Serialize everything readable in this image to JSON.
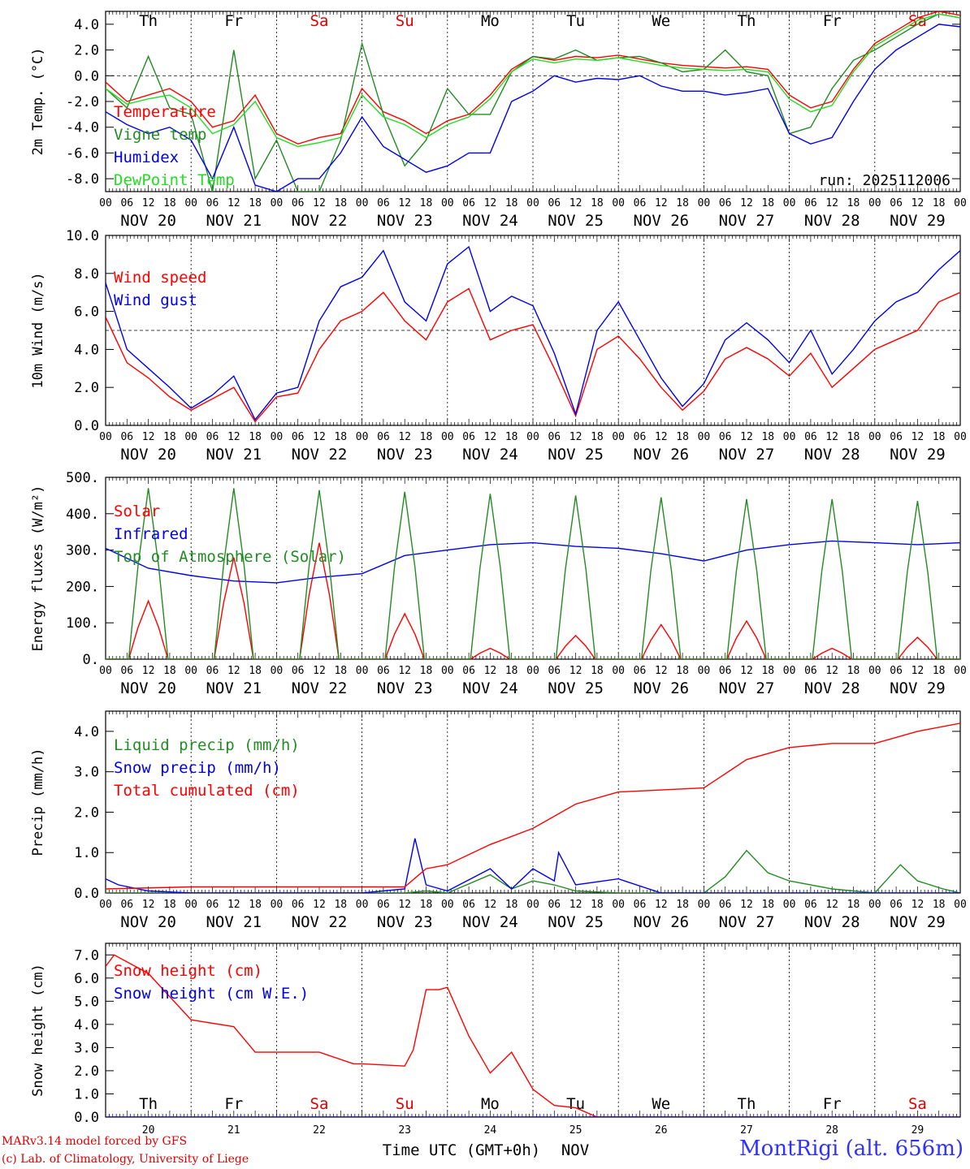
{
  "footer": {
    "model": "MARv3.14 model forced by GFS",
    "lab": "(c) Lab. of Climatology, University of Liege",
    "site": "MontRigi (alt. 656m)",
    "xlabel": "Time UTC (GMT+0h)",
    "xunit": "NOV"
  },
  "colors": {
    "red": "#ff0000",
    "green": "#228b22",
    "blue": "#0000ee",
    "lightgreen": "#22dd22",
    "weekend": "#e00000",
    "weekday": "#000000"
  },
  "days": [
    {
      "abbr": "Th",
      "date": "NOV 20",
      "num": "20",
      "weekend": false
    },
    {
      "abbr": "Fr",
      "date": "NOV 21",
      "num": "21",
      "weekend": false
    },
    {
      "abbr": "Sa",
      "date": "NOV 22",
      "num": "22",
      "weekend": true
    },
    {
      "abbr": "Su",
      "date": "NOV 23",
      "num": "23",
      "weekend": true
    },
    {
      "abbr": "Mo",
      "date": "NOV 24",
      "num": "24",
      "weekend": false
    },
    {
      "abbr": "Tu",
      "date": "NOV 25",
      "num": "25",
      "weekend": false
    },
    {
      "abbr": "We",
      "date": "NOV 26",
      "num": "26",
      "weekend": false
    },
    {
      "abbr": "Th",
      "date": "NOV 27",
      "num": "27",
      "weekend": false
    },
    {
      "abbr": "Fr",
      "date": "NOV 28",
      "num": "28",
      "weekend": false
    },
    {
      "abbr": "Sa",
      "date": "NOV 29",
      "num": "29",
      "weekend": true
    }
  ],
  "hour_ticks": [
    "00",
    "06",
    "12",
    "18"
  ],
  "chart_data": [
    {
      "type": "line",
      "title": "",
      "ylabel": "2m Temp. (°C)",
      "ylim": [
        -9,
        5
      ],
      "yticks": [
        -8,
        -6,
        -4,
        -2,
        0,
        2,
        4
      ],
      "ytick_labels": [
        "-8.0",
        "-6.0",
        "-4.0",
        "-2.0",
        "0.0",
        "2.0",
        "4.0"
      ],
      "ref_line": 0,
      "annotation": "run: 2025112006",
      "x_unit": "days since NOV 20 00 UTC",
      "series": [
        {
          "name": "Temperature",
          "color": "red",
          "x": [
            0,
            0.25,
            0.5,
            0.75,
            1,
            1.25,
            1.5,
            1.75,
            2,
            2.25,
            2.5,
            2.75,
            3,
            3.25,
            3.5,
            3.75,
            4,
            4.25,
            4.5,
            4.75,
            5,
            5.25,
            5.5,
            5.75,
            6,
            6.25,
            6.5,
            6.75,
            7,
            7.25,
            7.5,
            7.75,
            8,
            8.25,
            8.5,
            8.75,
            9,
            9.25,
            9.5,
            9.75,
            10
          ],
          "values": [
            -0.5,
            -2,
            -1.5,
            -1,
            -2,
            -4,
            -3.5,
            -1.5,
            -4.5,
            -5.3,
            -4.8,
            -4.5,
            -1,
            -2.8,
            -3.5,
            -4.5,
            -3.5,
            -3,
            -1.5,
            0.5,
            1.5,
            1.2,
            1.5,
            1.4,
            1.6,
            1.3,
            1,
            0.8,
            0.7,
            0.6,
            0.7,
            0.5,
            -1.5,
            -2.5,
            -2,
            0.5,
            2.5,
            3.5,
            4.5,
            5,
            4.7
          ]
        },
        {
          "name": "Vigne temp",
          "color": "green",
          "x": [
            0,
            0.25,
            0.5,
            0.75,
            1,
            1.25,
            1.5,
            1.75,
            2,
            2.25,
            2.5,
            2.75,
            3,
            3.25,
            3.5,
            3.75,
            4,
            4.25,
            4.5,
            4.75,
            5,
            5.25,
            5.5,
            5.75,
            6,
            6.25,
            6.5,
            6.75,
            7,
            7.25,
            7.5,
            7.75,
            8,
            8.25,
            8.5,
            8.75,
            9,
            9.25,
            9.5,
            9.75,
            10
          ],
          "values": [
            -1,
            -2.5,
            1.5,
            -2.5,
            -3,
            -9,
            2,
            -8,
            -5,
            -9,
            -9,
            -5,
            2.5,
            -3,
            -7,
            -5,
            -1,
            -3,
            -3,
            0.3,
            1.5,
            1.3,
            2,
            1.2,
            1.4,
            1.5,
            1,
            0.3,
            0.5,
            2,
            0.3,
            0,
            -4.5,
            -4,
            -1,
            1.2,
            2,
            3,
            4,
            4.8,
            4.5
          ]
        },
        {
          "name": "Humidex",
          "color": "blue",
          "x": [
            0,
            0.25,
            0.5,
            0.75,
            1,
            1.25,
            1.5,
            1.75,
            2,
            2.25,
            2.5,
            2.75,
            3,
            3.25,
            3.5,
            3.75,
            4,
            4.25,
            4.5,
            4.75,
            5,
            5.25,
            5.5,
            5.75,
            6,
            6.25,
            6.5,
            6.75,
            7,
            7.25,
            7.5,
            7.75,
            8,
            8.25,
            8.5,
            8.75,
            9,
            9.25,
            9.5,
            9.75,
            10
          ],
          "values": [
            -2.8,
            -3.8,
            -4.5,
            -4,
            -5,
            -8,
            -4,
            -8.5,
            -9,
            -8,
            -8,
            -6,
            -3.2,
            -5.5,
            -6.5,
            -7.5,
            -7,
            -6,
            -6,
            -2,
            -1.2,
            0,
            -0.5,
            -0.2,
            -0.3,
            0,
            -0.8,
            -1.2,
            -1.2,
            -1.5,
            -1.3,
            -1,
            -4.5,
            -5.3,
            -4.8,
            -2,
            0.5,
            2,
            3,
            4,
            3.8
          ]
        },
        {
          "name": "DewPoint Temp",
          "color": "lightgreen",
          "x": [
            0,
            0.25,
            0.5,
            0.75,
            1,
            1.25,
            1.5,
            1.75,
            2,
            2.25,
            2.5,
            2.75,
            3,
            3.25,
            3.5,
            3.75,
            4,
            4.25,
            4.5,
            4.75,
            5,
            5.25,
            5.5,
            5.75,
            6,
            6.25,
            6.5,
            6.75,
            7,
            7.25,
            7.5,
            7.75,
            8,
            8.25,
            8.5,
            8.75,
            9,
            9.25,
            9.5,
            9.75,
            10
          ],
          "values": [
            -1,
            -2.2,
            -1.8,
            -1.5,
            -2.5,
            -4.5,
            -3.8,
            -2,
            -4.8,
            -5.5,
            -5.2,
            -4.8,
            -1.5,
            -3.2,
            -3.8,
            -4.8,
            -3.8,
            -3.2,
            -1.8,
            0.3,
            1.3,
            1,
            1.3,
            1.2,
            1.4,
            1.1,
            0.8,
            0.6,
            0.5,
            0.4,
            0.5,
            0.3,
            -1.8,
            -2.8,
            -2.3,
            0.3,
            2.3,
            3.3,
            4.3,
            4.8,
            4.5
          ]
        }
      ]
    },
    {
      "type": "line",
      "ylabel": "10m Wind (m/s)",
      "ylim": [
        0,
        10
      ],
      "yticks": [
        0,
        2,
        4,
        6,
        8,
        10
      ],
      "ytick_labels": [
        "0.0",
        "2.0",
        "4.0",
        "6.0",
        "8.0",
        "10.0"
      ],
      "ref_line": 5,
      "x_unit": "days since NOV 20 00 UTC",
      "series": [
        {
          "name": "Wind speed",
          "color": "red",
          "x": [
            0,
            0.25,
            0.5,
            0.75,
            1,
            1.25,
            1.5,
            1.75,
            2,
            2.25,
            2.5,
            2.75,
            3,
            3.25,
            3.5,
            3.75,
            4,
            4.25,
            4.5,
            4.75,
            5,
            5.25,
            5.5,
            5.75,
            6,
            6.25,
            6.5,
            6.75,
            7,
            7.25,
            7.5,
            7.75,
            8,
            8.25,
            8.5,
            8.75,
            9,
            9.25,
            9.5,
            9.75,
            10
          ],
          "values": [
            5.7,
            3.3,
            2.5,
            1.5,
            0.8,
            1.4,
            2,
            0.2,
            1.5,
            1.7,
            4,
            5.5,
            6,
            7,
            5.5,
            4.5,
            6.5,
            7.2,
            4.5,
            5,
            5.3,
            3,
            0.5,
            4,
            4.7,
            3.5,
            2,
            0.8,
            1.8,
            3.5,
            4.1,
            3.5,
            2.6,
            3.8,
            2,
            3,
            4,
            4.5,
            5,
            6.5,
            7
          ]
        },
        {
          "name": "Wind gust",
          "color": "blue",
          "x": [
            0,
            0.25,
            0.5,
            0.75,
            1,
            1.25,
            1.5,
            1.75,
            2,
            2.25,
            2.5,
            2.75,
            3,
            3.25,
            3.5,
            3.75,
            4,
            4.25,
            4.5,
            4.75,
            5,
            5.25,
            5.5,
            5.75,
            6,
            6.25,
            6.5,
            6.75,
            7,
            7.25,
            7.5,
            7.75,
            8,
            8.25,
            8.5,
            8.75,
            9,
            9.25,
            9.5,
            9.75,
            10
          ],
          "values": [
            7.5,
            4,
            3,
            2,
            0.9,
            1.6,
            2.6,
            0.3,
            1.7,
            2,
            5.5,
            7.3,
            7.8,
            9.2,
            6.5,
            5.5,
            8.5,
            9.4,
            6,
            6.8,
            6.3,
            3.8,
            0.6,
            5,
            6.5,
            4.5,
            2.5,
            1,
            2.2,
            4.5,
            5.4,
            4.5,
            3.3,
            5,
            2.7,
            4,
            5.5,
            6.5,
            7,
            8.2,
            9.2
          ]
        }
      ]
    },
    {
      "type": "line",
      "ylabel": "Energy fluxes (W/m²)",
      "ylim": [
        0,
        500
      ],
      "yticks": [
        0,
        100,
        200,
        300,
        400,
        500
      ],
      "ytick_labels": [
        "0.",
        "100.",
        "200.",
        "300.",
        "400.",
        "500."
      ],
      "x_unit": "days since NOV 20 00 UTC",
      "series": [
        {
          "name": "Solar",
          "color": "red",
          "peaks": [
            160,
            280,
            320,
            125,
            30,
            65,
            95,
            105,
            30,
            60
          ]
        },
        {
          "name": "Infrared",
          "color": "blue",
          "x": [
            0,
            0.5,
            1,
            1.5,
            2,
            2.5,
            3,
            3.5,
            4,
            4.5,
            5,
            5.5,
            6,
            6.5,
            7,
            7.5,
            8,
            8.5,
            9,
            9.5,
            10
          ],
          "values": [
            305,
            250,
            230,
            215,
            210,
            225,
            235,
            285,
            300,
            315,
            320,
            310,
            305,
            290,
            270,
            300,
            315,
            325,
            320,
            315,
            320
          ]
        },
        {
          "name": "Top of Atmosphere (Solar)",
          "color": "green",
          "peaks": [
            470,
            470,
            465,
            460,
            455,
            450,
            445,
            440,
            440,
            435
          ]
        }
      ]
    },
    {
      "type": "line",
      "ylabel": "Precip (mm/h)",
      "ylim": [
        0,
        4.5
      ],
      "yticks": [
        0,
        1,
        2,
        3,
        4
      ],
      "ytick_labels": [
        "0.0",
        "1.0",
        "2.0",
        "3.0",
        "4.0"
      ],
      "x_unit": "days since NOV 20 00 UTC",
      "series": [
        {
          "name": "Liquid precip (mm/h)",
          "color": "green",
          "x": [
            0,
            0.5,
            1,
            2,
            3,
            3.5,
            3.75,
            4,
            4.5,
            4.75,
            5,
            5.25,
            5.5,
            6,
            7,
            7.25,
            7.5,
            7.75,
            8,
            8.5,
            9,
            9.3,
            9.5,
            9.8,
            10
          ],
          "values": [
            0,
            0,
            0,
            0,
            0,
            0,
            0.05,
            0,
            0.45,
            0.1,
            0.3,
            0.2,
            0.05,
            0,
            0,
            0.4,
            1.05,
            0.5,
            0.3,
            0.1,
            0,
            0.7,
            0.3,
            0.1,
            0
          ]
        },
        {
          "name": "Snow precip (mm/h)",
          "color": "blue",
          "x": [
            0,
            0.15,
            0.5,
            1,
            2,
            3,
            3.5,
            3.62,
            3.75,
            4,
            4.5,
            4.75,
            5,
            5.25,
            5.3,
            5.5,
            6,
            6.5,
            7,
            8,
            9,
            10
          ],
          "values": [
            0.35,
            0.2,
            0.05,
            0,
            0,
            0,
            0.1,
            1.35,
            0.2,
            0.05,
            0.6,
            0.1,
            0.6,
            0.3,
            1.0,
            0.2,
            0.35,
            0,
            0,
            0,
            0,
            0
          ]
        },
        {
          "name": "Total cumulated (cm)",
          "color": "red",
          "x": [
            0,
            1,
            2,
            3,
            3.5,
            3.75,
            4,
            4.5,
            5,
            5.5,
            6,
            7,
            7.5,
            8,
            8.5,
            9,
            9.5,
            10
          ],
          "values": [
            0.1,
            0.15,
            0.15,
            0.15,
            0.15,
            0.6,
            0.7,
            1.2,
            1.6,
            2.2,
            2.5,
            2.6,
            3.3,
            3.6,
            3.7,
            3.7,
            4,
            4.2
          ]
        }
      ]
    },
    {
      "type": "line",
      "ylabel": "Snow height (cm)",
      "ylim": [
        0,
        7.5
      ],
      "yticks": [
        0,
        1,
        2,
        3,
        4,
        5,
        6,
        7
      ],
      "ytick_labels": [
        "0.0",
        "1.0",
        "2.0",
        "3.0",
        "4.0",
        "5.0",
        "6.0",
        "7.0"
      ],
      "x_unit": "days since NOV 20 00 UTC",
      "series": [
        {
          "name": "Snow height (cm)",
          "color": "red",
          "x": [
            0,
            0.1,
            0.5,
            1,
            1.5,
            1.75,
            2,
            2.5,
            2.9,
            3,
            3.5,
            3.6,
            3.75,
            3.9,
            4,
            4.25,
            4.5,
            4.75,
            5,
            5.25,
            5.5,
            5.75,
            6,
            7,
            8,
            9,
            10
          ],
          "values": [
            6.5,
            7,
            6.2,
            4.2,
            3.9,
            2.8,
            2.8,
            2.8,
            2.3,
            2.3,
            2.2,
            2.9,
            5.5,
            5.5,
            5.6,
            3.5,
            1.9,
            2.8,
            1.2,
            0.5,
            0.4,
            0,
            0,
            0,
            0,
            0,
            0
          ]
        },
        {
          "name": "Snow height (cm W.E.)",
          "color": "blue",
          "x": [
            0,
            10
          ],
          "values": [
            0,
            0
          ]
        }
      ]
    }
  ]
}
